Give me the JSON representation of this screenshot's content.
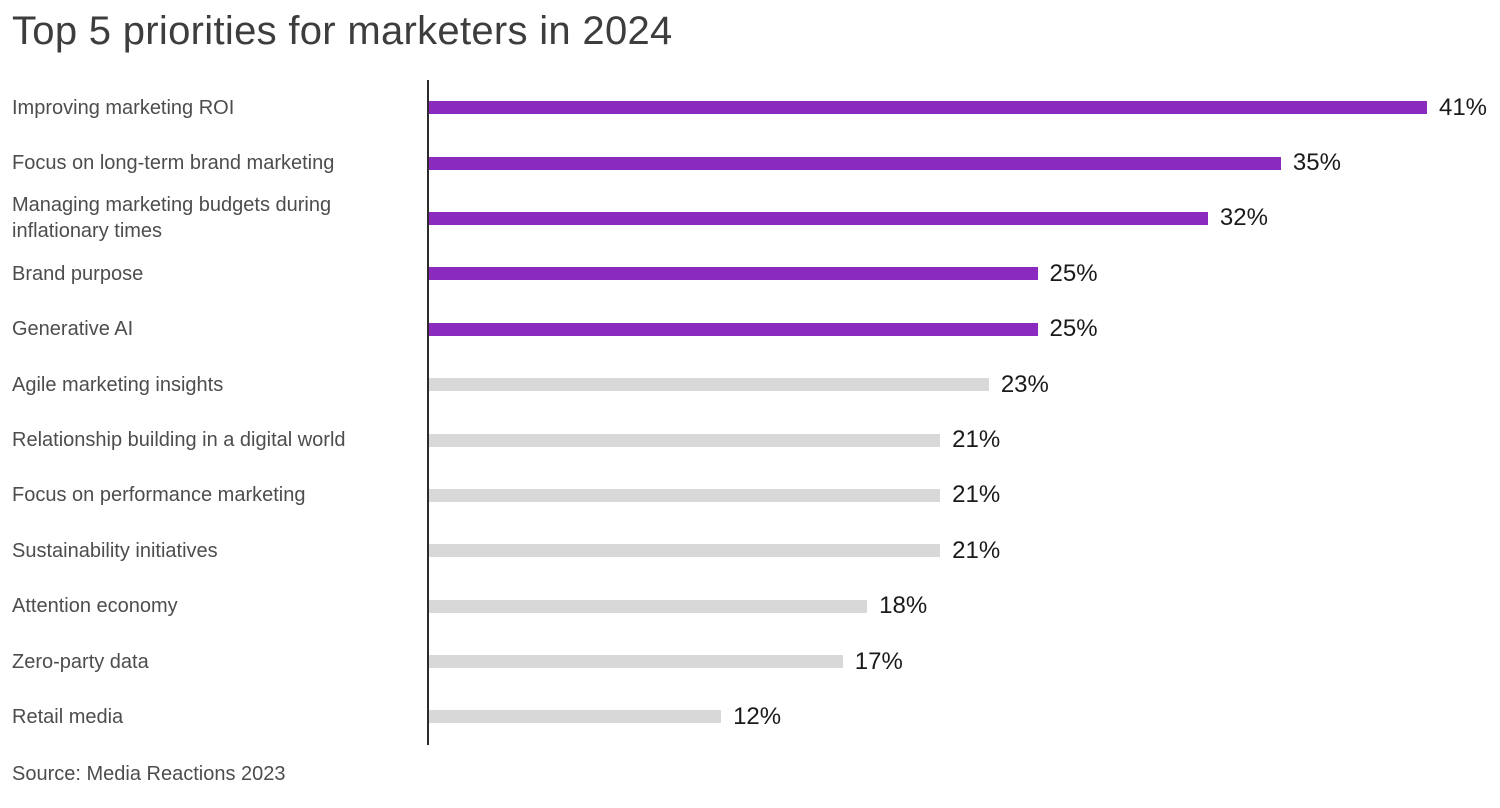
{
  "header": {
    "title": "Top 5 priorities for marketers in 2024"
  },
  "footer": {
    "source": "Source: Media Reactions 2023"
  },
  "colors": {
    "highlighted_bar": "#8A2ABE",
    "default_bar": "#D8D8D8",
    "axis_line": "#2B2B2B",
    "title_text": "#3D3D3D",
    "label_text": "#4D4D4D",
    "value_text": "#1A1A1A"
  },
  "chart_data": {
    "type": "bar",
    "orientation": "horizontal",
    "title": "Top 5 priorities for marketers in 2024",
    "xlabel": "",
    "ylabel": "",
    "xlim": [
      0,
      44
    ],
    "grid": false,
    "legend": false,
    "value_suffix": "%",
    "categories": [
      "Improving marketing ROI",
      "Focus on long-term brand marketing",
      "Managing marketing budgets during inflationary times",
      "Brand purpose",
      "Generative AI",
      "Agile marketing insights",
      "Relationship building in a digital world",
      "Focus on performance marketing",
      "Sustainability initiatives",
      "Attention economy",
      "Zero-party data",
      "Retail media"
    ],
    "values": [
      41,
      35,
      32,
      25,
      25,
      23,
      21,
      21,
      21,
      18,
      17,
      12
    ],
    "value_labels": [
      "41%",
      "35%",
      "32%",
      "25%",
      "25%",
      "23%",
      "21%",
      "21%",
      "21%",
      "18%",
      "17%",
      "12%"
    ],
    "highlighted": [
      true,
      true,
      true,
      true,
      true,
      false,
      false,
      false,
      false,
      false,
      false,
      false
    ],
    "source": "Source: Media Reactions 2023"
  }
}
